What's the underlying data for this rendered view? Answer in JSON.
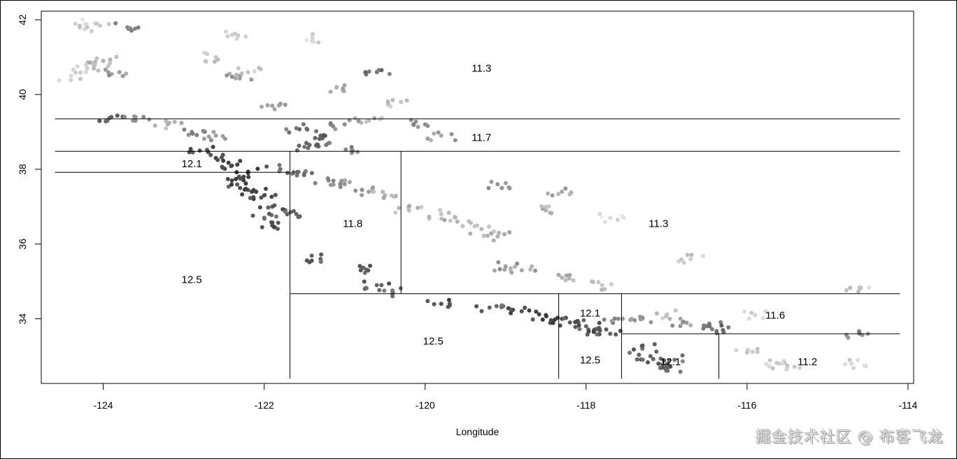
{
  "chart_data": {
    "type": "scatter",
    "title": "",
    "xlabel": "Longitude",
    "ylabel": "",
    "xlim": [
      -124.77,
      -113.93
    ],
    "ylim": [
      32.27,
      42.23
    ],
    "xticks": [
      -124,
      -122,
      -120,
      -118,
      -116,
      -114
    ],
    "yticks": [
      34,
      36,
      38,
      40,
      42
    ],
    "grid": false,
    "color_scale": "grayscale, darker = higher value",
    "partition_lines": [
      {
        "orient": "h",
        "at": 39.35,
        "from": -124.6,
        "to": -114.1
      },
      {
        "orient": "h",
        "at": 38.48,
        "from": -124.6,
        "to": -114.1
      },
      {
        "orient": "h",
        "at": 37.92,
        "from": -124.6,
        "to": -121.68
      },
      {
        "orient": "h",
        "at": 34.67,
        "from": -121.68,
        "to": -114.1
      },
      {
        "orient": "h",
        "at": 33.6,
        "from": -117.56,
        "to": -114.1
      },
      {
        "orient": "v",
        "at": -121.68,
        "from": 32.4,
        "to": 38.48
      },
      {
        "orient": "v",
        "at": -120.3,
        "from": 34.67,
        "to": 38.48
      },
      {
        "orient": "v",
        "at": -118.34,
        "from": 32.4,
        "to": 34.67
      },
      {
        "orient": "v",
        "at": -117.56,
        "from": 32.4,
        "to": 34.67
      },
      {
        "orient": "v",
        "at": -116.35,
        "from": 32.4,
        "to": 33.6
      }
    ],
    "region_labels": [
      {
        "text": "11.3",
        "lon": -119.3,
        "lat": 40.7
      },
      {
        "text": "11.7",
        "lon": -119.3,
        "lat": 38.85
      },
      {
        "text": "12.1",
        "lon": -122.9,
        "lat": 38.15
      },
      {
        "text": "11.8",
        "lon": -120.9,
        "lat": 36.55
      },
      {
        "text": "12.5",
        "lon": -122.9,
        "lat": 35.05
      },
      {
        "text": "11.3",
        "lon": -117.1,
        "lat": 36.55
      },
      {
        "text": "12.5",
        "lon": -119.9,
        "lat": 33.4
      },
      {
        "text": "12.1",
        "lon": -117.95,
        "lat": 34.15
      },
      {
        "text": "11.6",
        "lon": -115.65,
        "lat": 34.1
      },
      {
        "text": "12.5",
        "lon": -117.95,
        "lat": 32.9
      },
      {
        "text": "12.1",
        "lon": -116.95,
        "lat": 32.85
      },
      {
        "text": "11.2",
        "lon": -115.25,
        "lat": 32.85
      }
    ],
    "points": [
      [
        -124.2,
        41.8,
        0.85
      ],
      [
        -124.1,
        41.9,
        0.88
      ],
      [
        -123.7,
        41.8,
        0.5
      ],
      [
        -124.1,
        40.8,
        0.8
      ],
      [
        -124.0,
        40.9,
        0.7
      ],
      [
        -124.2,
        40.7,
        0.85
      ],
      [
        -124.4,
        40.5,
        0.9
      ],
      [
        -123.8,
        40.6,
        0.6
      ],
      [
        -123.9,
        39.4,
        0.3
      ],
      [
        -123.6,
        39.3,
        0.5
      ],
      [
        -123.2,
        39.2,
        0.7
      ],
      [
        -122.9,
        39.0,
        0.5
      ],
      [
        -122.6,
        38.9,
        0.6
      ],
      [
        -122.3,
        40.5,
        0.6
      ],
      [
        -122.2,
        40.6,
        0.8
      ],
      [
        -121.9,
        39.7,
        0.6
      ],
      [
        -121.6,
        39.1,
        0.4
      ],
      [
        -121.3,
        38.9,
        0.3
      ],
      [
        -121.0,
        39.2,
        0.5
      ],
      [
        -121.5,
        38.6,
        0.4
      ],
      [
        -121.2,
        38.7,
        0.35
      ],
      [
        -120.9,
        38.5,
        0.5
      ],
      [
        -121.1,
        40.2,
        0.7
      ],
      [
        -120.7,
        39.3,
        0.75
      ],
      [
        -120.0,
        39.2,
        0.5
      ],
      [
        -119.8,
        38.9,
        0.65
      ],
      [
        -120.6,
        40.6,
        0.4
      ],
      [
        -122.8,
        38.5,
        0.2
      ],
      [
        -122.6,
        38.3,
        0.15
      ],
      [
        -122.4,
        38.1,
        0.2
      ],
      [
        -122.2,
        37.9,
        0.1
      ],
      [
        -122.4,
        37.7,
        0.15
      ],
      [
        -122.3,
        37.5,
        0.2
      ],
      [
        -122.1,
        37.4,
        0.1
      ],
      [
        -122.0,
        37.3,
        0.2
      ],
      [
        -121.9,
        37.0,
        0.25
      ],
      [
        -122.0,
        36.7,
        0.3
      ],
      [
        -121.9,
        36.5,
        0.2
      ],
      [
        -121.6,
        36.8,
        0.3
      ],
      [
        -121.8,
        38.0,
        0.35
      ],
      [
        -121.5,
        37.9,
        0.4
      ],
      [
        -121.2,
        37.7,
        0.5
      ],
      [
        -121.0,
        37.6,
        0.55
      ],
      [
        -120.7,
        37.4,
        0.6
      ],
      [
        -120.5,
        37.3,
        0.7
      ],
      [
        -120.2,
        36.9,
        0.75
      ],
      [
        -119.8,
        36.8,
        0.8
      ],
      [
        -119.6,
        36.6,
        0.7
      ],
      [
        -119.3,
        36.4,
        0.75
      ],
      [
        -119.1,
        36.2,
        0.7
      ],
      [
        -119.0,
        35.4,
        0.6
      ],
      [
        -118.8,
        35.3,
        0.65
      ],
      [
        -118.3,
        35.1,
        0.7
      ],
      [
        -117.8,
        34.9,
        0.8
      ],
      [
        -121.3,
        35.6,
        0.3
      ],
      [
        -120.8,
        35.3,
        0.25
      ],
      [
        -120.6,
        34.9,
        0.3
      ],
      [
        -120.4,
        34.7,
        0.35
      ],
      [
        -119.8,
        34.4,
        0.2
      ],
      [
        -119.2,
        34.3,
        0.3
      ],
      [
        -118.8,
        34.2,
        0.2
      ],
      [
        -118.5,
        34.1,
        0.15
      ],
      [
        -118.3,
        34.0,
        0.15
      ],
      [
        -118.2,
        33.9,
        0.25
      ],
      [
        -118.0,
        33.8,
        0.3
      ],
      [
        -117.9,
        33.7,
        0.2
      ],
      [
        -117.7,
        33.6,
        0.3
      ],
      [
        -117.6,
        34.0,
        0.5
      ],
      [
        -117.3,
        34.0,
        0.6
      ],
      [
        -117.0,
        34.1,
        0.75
      ],
      [
        -116.8,
        33.9,
        0.6
      ],
      [
        -116.5,
        33.8,
        0.45
      ],
      [
        -116.3,
        33.7,
        0.35
      ],
      [
        -117.2,
        33.0,
        0.3
      ],
      [
        -117.1,
        32.8,
        0.2
      ],
      [
        -117.0,
        32.7,
        0.35
      ],
      [
        -116.9,
        32.9,
        0.4
      ],
      [
        -117.3,
        33.2,
        0.3
      ],
      [
        -116.0,
        33.1,
        0.8
      ],
      [
        -115.6,
        32.8,
        0.85
      ],
      [
        -115.5,
        32.75,
        0.8
      ],
      [
        -114.6,
        34.8,
        0.85
      ],
      [
        -114.6,
        33.6,
        0.5
      ],
      [
        -114.7,
        32.8,
        0.9
      ],
      [
        -115.9,
        34.1,
        0.85
      ],
      [
        -116.7,
        35.6,
        0.85
      ],
      [
        -117.7,
        36.7,
        0.9
      ],
      [
        -118.3,
        37.4,
        0.65
      ],
      [
        -119.1,
        37.6,
        0.55
      ],
      [
        -118.5,
        36.9,
        0.7
      ],
      [
        -120.3,
        39.8,
        0.8
      ],
      [
        -122.4,
        41.6,
        0.85
      ],
      [
        -122.6,
        41.0,
        0.8
      ],
      [
        -121.4,
        41.5,
        0.9
      ]
    ]
  },
  "watermark": "掘金技术社区 @ 布客飞龙"
}
